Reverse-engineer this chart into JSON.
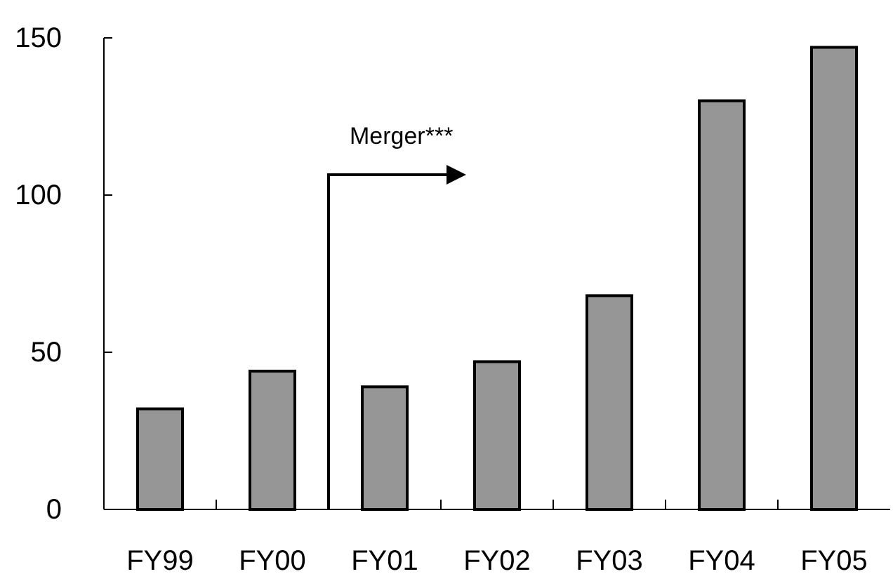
{
  "chart_data": {
    "type": "bar",
    "categories": [
      "FY99",
      "FY00",
      "FY01",
      "FY02",
      "FY03",
      "FY04",
      "FY05"
    ],
    "values": [
      32,
      44,
      39,
      47,
      68,
      130,
      147
    ],
    "color": "#969696",
    "ylim": [
      0,
      150
    ],
    "yticks": [
      0,
      50,
      100,
      150
    ],
    "grid": false,
    "annotations": [
      "Merger***"
    ]
  }
}
